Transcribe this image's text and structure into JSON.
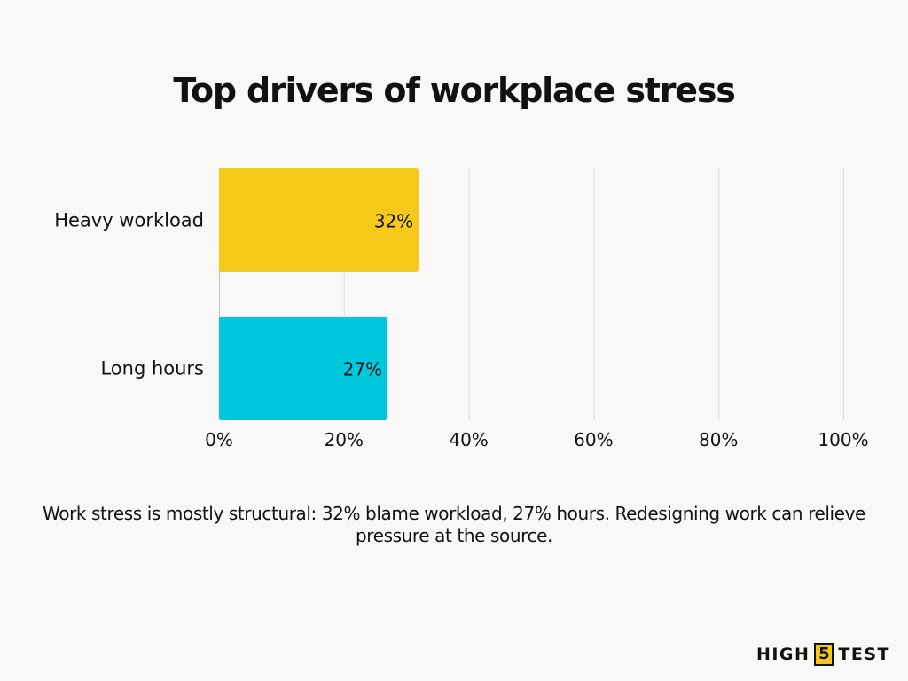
{
  "header": {
    "title": "Top drivers of workplace stress"
  },
  "chart_data": {
    "type": "bar",
    "orientation": "horizontal",
    "categories": [
      "Heavy workload",
      "Long hours"
    ],
    "values": [
      32,
      27
    ],
    "value_labels": [
      "32%",
      "27%"
    ],
    "bar_colors": [
      "#f5c918",
      "#00c8dc"
    ],
    "xlim": [
      0,
      100
    ],
    "xticks": [
      0,
      20,
      40,
      60,
      80,
      100
    ],
    "xtick_labels": [
      "0%",
      "20%",
      "40%",
      "60%",
      "80%",
      "100%"
    ],
    "grid": "vertical",
    "xlabel": "",
    "ylabel": ""
  },
  "footer": {
    "caption": "Work stress is mostly structural: 32% blame workload, 27% hours. Redesigning work can relieve pressure at the source."
  },
  "logo": {
    "left_text": "HIGH",
    "box_text": "5",
    "right_text": "TEST",
    "accent_color": "#f5c518"
  }
}
